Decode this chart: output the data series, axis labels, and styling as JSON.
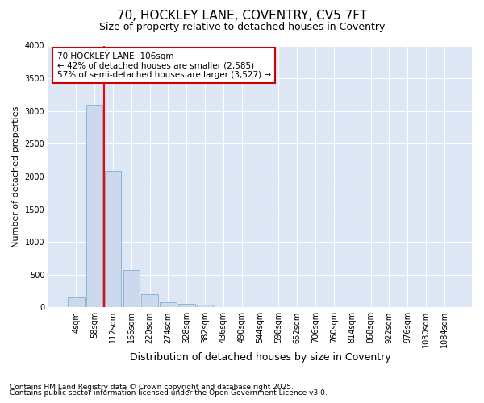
{
  "title1": "70, HOCKLEY LANE, COVENTRY, CV5 7FT",
  "title2": "Size of property relative to detached houses in Coventry",
  "xlabel": "Distribution of detached houses by size in Coventry",
  "ylabel": "Number of detached properties",
  "footnote1": "Contains HM Land Registry data © Crown copyright and database right 2025.",
  "footnote2": "Contains public sector information licensed under the Open Government Licence v3.0.",
  "annotation_title": "70 HOCKLEY LANE: 106sqm",
  "annotation_line1": "← 42% of detached houses are smaller (2,585)",
  "annotation_line2": "57% of semi-detached houses are larger (3,527) →",
  "bar_color": "#ccd9ec",
  "bar_edge_color": "#7fafd4",
  "vline_color": "red",
  "categories": [
    "4sqm",
    "58sqm",
    "112sqm",
    "166sqm",
    "220sqm",
    "274sqm",
    "328sqm",
    "382sqm",
    "436sqm",
    "490sqm",
    "544sqm",
    "598sqm",
    "652sqm",
    "706sqm",
    "760sqm",
    "814sqm",
    "868sqm",
    "922sqm",
    "976sqm",
    "1030sqm",
    "1084sqm"
  ],
  "values": [
    150,
    3100,
    2080,
    575,
    200,
    80,
    55,
    45,
    0,
    0,
    0,
    0,
    0,
    0,
    0,
    0,
    0,
    0,
    0,
    0,
    0
  ],
  "ylim": [
    0,
    4000
  ],
  "yticks": [
    0,
    500,
    1000,
    1500,
    2000,
    2500,
    3000,
    3500,
    4000
  ],
  "fig_bg_color": "#ffffff",
  "plot_bg_color": "#dce6f5",
  "grid_color": "#ffffff",
  "annotation_box_facecolor": "#ffffff",
  "annotation_box_edgecolor": "#cc0000",
  "vline_x": 1.5,
  "title1_fontsize": 11,
  "title2_fontsize": 9,
  "xlabel_fontsize": 9,
  "ylabel_fontsize": 8,
  "tick_fontsize": 7,
  "footnote_fontsize": 6.5
}
